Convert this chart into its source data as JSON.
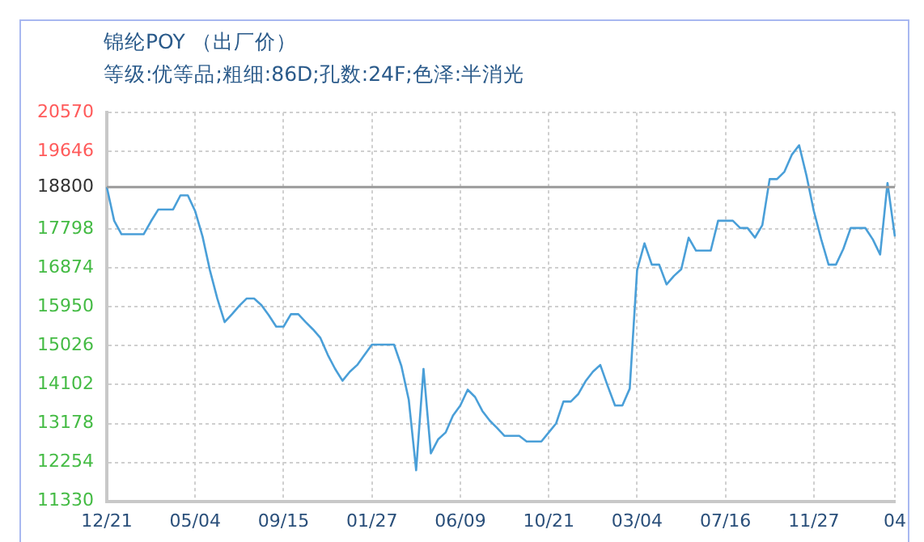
{
  "chart_data": {
    "type": "line",
    "title": "锦纶POY （出厂价）",
    "subtitle": "等级:优等品;粗细:86D;孔数:24F;色泽:半消光",
    "categories": [
      "12/21",
      null,
      null,
      null,
      null,
      null,
      null,
      null,
      null,
      null,
      null,
      null,
      "05/04",
      null,
      null,
      null,
      null,
      null,
      null,
      null,
      null,
      null,
      null,
      null,
      "09/15",
      null,
      null,
      null,
      null,
      null,
      null,
      null,
      null,
      null,
      null,
      null,
      "01/27",
      null,
      null,
      null,
      null,
      null,
      null,
      null,
      null,
      null,
      null,
      null,
      "06/09",
      null,
      null,
      null,
      null,
      null,
      null,
      null,
      null,
      null,
      null,
      null,
      "10/21",
      null,
      null,
      null,
      null,
      null,
      null,
      null,
      null,
      null,
      null,
      null,
      "03/04",
      null,
      null,
      null,
      null,
      null,
      null,
      null,
      null,
      null,
      null,
      null,
      "07/16",
      null,
      null,
      null,
      null,
      null,
      null,
      null,
      null,
      null,
      null,
      null,
      "11/27",
      null,
      null,
      null,
      null,
      null,
      null,
      null,
      null,
      null,
      null,
      "04"
    ],
    "series": [
      {
        "color": "#4a9fd8",
        "values": [
          18800,
          17999,
          17678,
          17678,
          17678,
          17678,
          17986,
          18267,
          18267,
          18267,
          18602,
          18602,
          18227,
          17624,
          16821,
          16151,
          15589,
          15777,
          15978,
          16151,
          16151,
          15991,
          15750,
          15482,
          15482,
          15777,
          15777,
          15589,
          15415,
          15214,
          14812,
          14477,
          14196,
          14409,
          14570,
          14812,
          15053,
          15053,
          15053,
          15053,
          14544,
          13741,
          12067,
          14477,
          12469,
          12804,
          12964,
          13366,
          13607,
          13982,
          13808,
          13473,
          13245,
          13071,
          12884,
          12884,
          12884,
          12750,
          12750,
          12750,
          12964,
          13178,
          13701,
          13701,
          13875,
          14183,
          14409,
          14570,
          14075,
          13607,
          13607,
          14008,
          16821,
          17463,
          16955,
          16955,
          16486,
          16687,
          16848,
          17597,
          17289,
          17289,
          17289,
          17999,
          17999,
          17999,
          17825,
          17825,
          17597,
          17892,
          18990,
          18990,
          19164,
          19566,
          19794,
          19071,
          18227,
          17557,
          16955,
          16955,
          17329,
          17825,
          17825,
          17825,
          17557,
          17195,
          18897,
          17624
        ]
      }
    ],
    "ylim": [
      11330,
      20570
    ],
    "yticks": [
      20570,
      19646,
      18800,
      17798,
      16874,
      15950,
      15026,
      14102,
      13178,
      12254,
      11330
    ],
    "ref_lines": [
      {
        "axis": "y",
        "value": 18800,
        "color": "#9a9a9a"
      }
    ],
    "grid": true,
    "legend": false,
    "marker": "none",
    "line_style": "solid"
  }
}
